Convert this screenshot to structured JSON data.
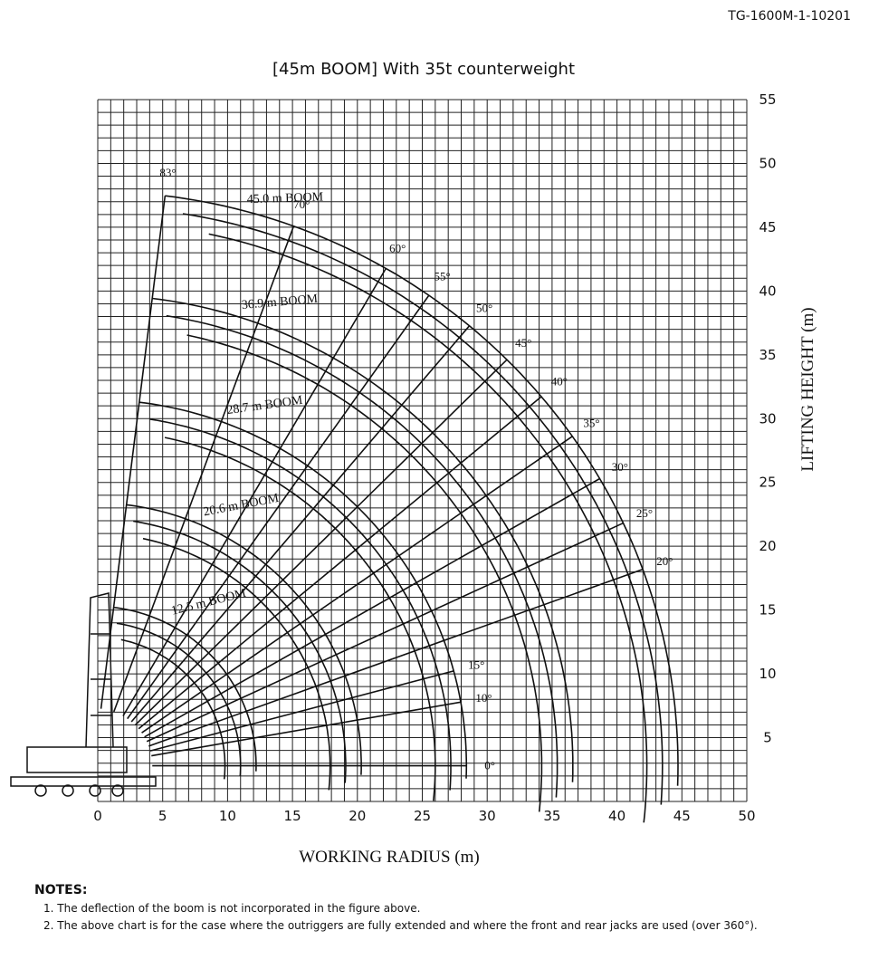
{
  "doc_id": "TG-1600M-1-10201",
  "title": "[45m BOOM]  With 35t counterweight",
  "x_axis": {
    "label": "WORKING RADIUS (m)",
    "ticks": [
      0,
      5,
      10,
      15,
      20,
      25,
      30,
      35,
      40,
      45,
      50
    ]
  },
  "y_axis": {
    "label": "LIFTING HEIGHT (m)",
    "ticks": [
      5,
      10,
      15,
      20,
      25,
      30,
      35,
      40,
      45,
      50,
      55
    ]
  },
  "booms": [
    "45.0 m BOOM",
    "36.9 m BOOM",
    "28.7 m BOOM",
    "20.6 m BOOM",
    "12.5 m BOOM"
  ],
  "angles": [
    "83°",
    "70°",
    "60°",
    "55°",
    "50°",
    "45°",
    "40°",
    "35°",
    "30°",
    "25°",
    "20°",
    "15°",
    "10°",
    "0°"
  ],
  "notes": {
    "heading": "NOTES:",
    "items": [
      "1.  The deflection of the boom is not incorporated in the figure above.",
      "2.  The above chart is for the case where the outriggers are fully extended and where the front and rear jacks are used (over 360°)."
    ]
  }
}
